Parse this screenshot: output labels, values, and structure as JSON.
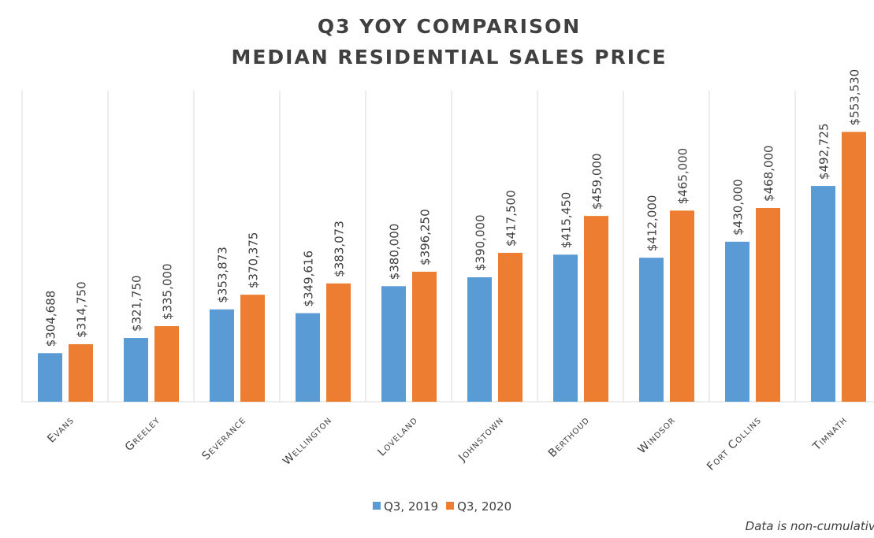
{
  "chart_data": {
    "type": "bar",
    "title": "Q3 YOY COMPARISON",
    "subtitle": "MEDIAN RESIDENTIAL SALES PRICE",
    "note": "Data is non-cumulative",
    "categories": [
      "Evans",
      "Greeley",
      "Severance",
      "Wellington",
      "Loveland",
      "Johnstown",
      "Berthoud",
      "Windsor",
      "Fort Collins",
      "Timnath"
    ],
    "series": [
      {
        "name": "Q3, 2019",
        "color": "#5b9bd5",
        "values": [
          304688,
          321750,
          353873,
          349616,
          380000,
          390000,
          415450,
          412000,
          430000,
          492725
        ],
        "value_labels": [
          "$304,688",
          "$321,750",
          "$353,873",
          "$349,616",
          "$380,000",
          "$390,000",
          "$415,450",
          "$412,000",
          "$430,000",
          "$492,725"
        ]
      },
      {
        "name": "Q3, 2020",
        "color": "#ed7d31",
        "values": [
          314750,
          335000,
          370375,
          383073,
          396250,
          417500,
          459000,
          465000,
          468000,
          553530
        ],
        "value_labels": [
          "$314,750",
          "$335,000",
          "$370,375",
          "$383,073",
          "$396,250",
          "$417,500",
          "$459,000",
          "$465,000",
          "$468,000",
          "$553,530"
        ]
      }
    ],
    "ylim": [
      250000,
      600000
    ],
    "legend": "bottom"
  }
}
